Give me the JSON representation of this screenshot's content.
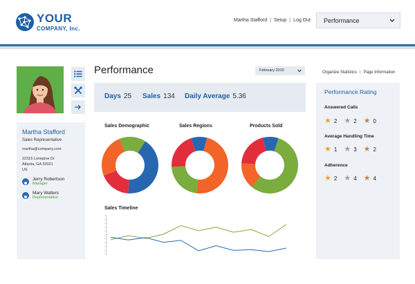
{
  "brand": {
    "line1": "YOUR",
    "line2": "COMPANY, Inc."
  },
  "header": {
    "user": "Martha Stafford",
    "links": [
      "Setup",
      "Log Out"
    ],
    "separator": "|",
    "view_select": "Performance"
  },
  "profile": {
    "name": "Martha Stafford",
    "role": "Sales Representative",
    "email": "martha@company.com",
    "address": [
      "22315 Lonepine Dr",
      "Atlanta, GA 33021",
      "US"
    ],
    "contacts": [
      {
        "name": "Jerry Robertson",
        "role": "Manager"
      },
      {
        "name": "Mary Walters",
        "role": "Representative"
      }
    ],
    "tool_icons": [
      "list-icon",
      "tools-icon",
      "arrow-right-icon"
    ]
  },
  "main": {
    "title": "Performance",
    "month": "February 2015",
    "stats": [
      {
        "label": "Days",
        "value": "25"
      },
      {
        "label": "Sales",
        "value": "134"
      },
      {
        "label": "Daily Average",
        "value": "5.36"
      }
    ]
  },
  "right": {
    "links": [
      "Organize Statistics",
      "Page Information"
    ],
    "title": "Performance Rating",
    "sections": [
      {
        "label": "Answered Calls",
        "ratings": [
          {
            "star": "gold",
            "value": "2"
          },
          {
            "star": "silver",
            "value": "2"
          },
          {
            "star": "bronze",
            "value": "0"
          }
        ]
      },
      {
        "label": "Average Handling Time",
        "ratings": [
          {
            "star": "gold",
            "value": "1"
          },
          {
            "star": "silver",
            "value": "3"
          },
          {
            "star": "bronze",
            "value": "2"
          }
        ]
      },
      {
        "label": "Adherence",
        "ratings": [
          {
            "star": "gold",
            "value": "2"
          },
          {
            "star": "silver",
            "value": "4"
          },
          {
            "star": "bronze",
            "value": "4"
          }
        ]
      }
    ]
  },
  "colors": {
    "brand_blue": "#1d5fa5",
    "chart_blue": "#2767b0",
    "chart_red": "#e32d3d",
    "chart_orange": "#f26427",
    "chart_green": "#7aac3e",
    "star_gold": "#f3a21f",
    "star_silver": "#9aa0a8",
    "star_bronze": "#c8834a"
  },
  "chart_data": [
    {
      "type": "pie",
      "title": "Sales Demographic",
      "values": [
        42,
        18,
        25,
        15
      ],
      "colors": [
        "#2767b0",
        "#e32d3d",
        "#f26427",
        "#7aac3e"
      ]
    },
    {
      "type": "pie",
      "title": "Sales Regions",
      "values": [
        48,
        22,
        21,
        9
      ],
      "colors": [
        "#f26427",
        "#7aac3e",
        "#e32d3d",
        "#2767b0"
      ]
    },
    {
      "type": "pie",
      "title": "Products Sold",
      "values": [
        20,
        9,
        56,
        15
      ],
      "colors": [
        "#e32d3d",
        "#2767b0",
        "#7aac3e",
        "#f26427"
      ]
    },
    {
      "type": "line",
      "title": "Sales Timeline",
      "series": [
        {
          "color": "#7aac3e",
          "values": [
            0.38,
            0.48,
            0.41,
            0.52,
            0.74,
            0.61,
            0.7,
            0.57,
            0.64,
            0.46,
            0.77
          ]
        },
        {
          "color": "#2767b0",
          "values": [
            0.44,
            0.37,
            0.43,
            0.31,
            0.36,
            0.09,
            0.22,
            0.1,
            0.12,
            0.07,
            0.16
          ]
        }
      ]
    }
  ]
}
